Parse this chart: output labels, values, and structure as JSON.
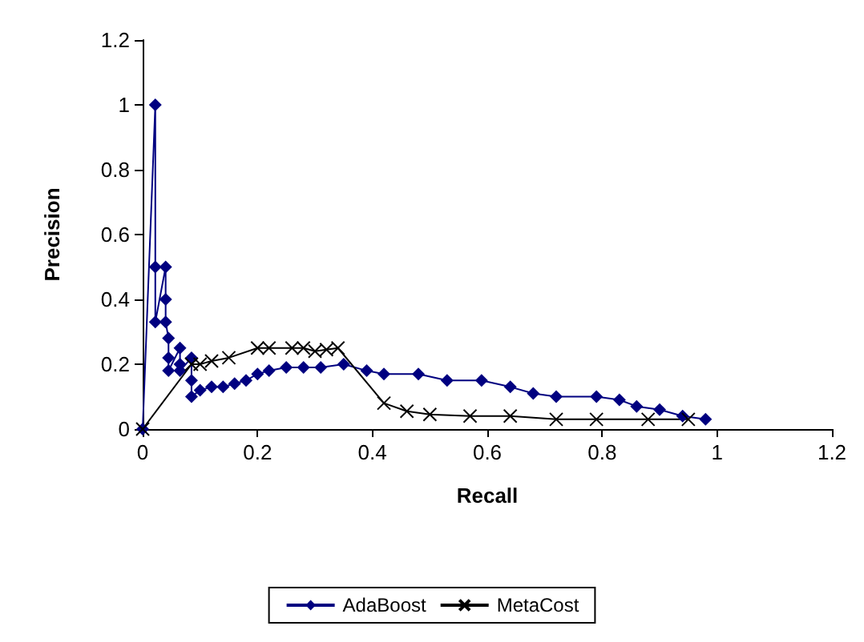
{
  "chart_data": {
    "type": "line",
    "xlabel": "Recall",
    "ylabel": "Precision",
    "xlim": [
      0,
      1.2
    ],
    "xticks": [
      0,
      0.2,
      0.4,
      0.6,
      0.8,
      1,
      1.2
    ],
    "ylim": [
      0,
      1.2
    ],
    "yticks": [
      0,
      0.2,
      0.4,
      0.6,
      0.8,
      1,
      1.2
    ],
    "grid": false,
    "legend": "bottom",
    "line_style": "solid",
    "series": [
      {
        "name": "AdaBoost",
        "color": "#000080",
        "marker": "diamond",
        "x": [
          0,
          0.022,
          0.022,
          0.022,
          0.04,
          0.04,
          0.04,
          0.045,
          0.045,
          0.045,
          0.065,
          0.065,
          0.065,
          0.085,
          0.085,
          0.085,
          0.1,
          0.12,
          0.14,
          0.16,
          0.18,
          0.2,
          0.22,
          0.25,
          0.28,
          0.31,
          0.35,
          0.39,
          0.42,
          0.48,
          0.53,
          0.59,
          0.64,
          0.68,
          0.72,
          0.79,
          0.83,
          0.86,
          0.9,
          0.94,
          0.98
        ],
        "values": [
          0,
          1,
          0.5,
          0.33,
          0.5,
          0.4,
          0.33,
          0.28,
          0.22,
          0.18,
          0.25,
          0.2,
          0.18,
          0.22,
          0.15,
          0.1,
          0.12,
          0.13,
          0.13,
          0.14,
          0.15,
          0.17,
          0.18,
          0.19,
          0.19,
          0.19,
          0.2,
          0.18,
          0.17,
          0.17,
          0.15,
          0.15,
          0.13,
          0.11,
          0.1,
          0.1,
          0.09,
          0.07,
          0.06,
          0.04,
          0.03
        ]
      },
      {
        "name": "MetaCost",
        "color": "#000000",
        "marker": "cross",
        "x": [
          0,
          0.085,
          0.1,
          0.12,
          0.15,
          0.2,
          0.22,
          0.26,
          0.28,
          0.3,
          0.32,
          0.34,
          0.42,
          0.46,
          0.5,
          0.57,
          0.64,
          0.72,
          0.79,
          0.88,
          0.95
        ],
        "values": [
          0,
          0.2,
          0.2,
          0.21,
          0.22,
          0.25,
          0.25,
          0.25,
          0.25,
          0.24,
          0.245,
          0.25,
          0.08,
          0.055,
          0.045,
          0.04,
          0.04,
          0.03,
          0.03,
          0.03,
          0.03
        ]
      }
    ]
  }
}
